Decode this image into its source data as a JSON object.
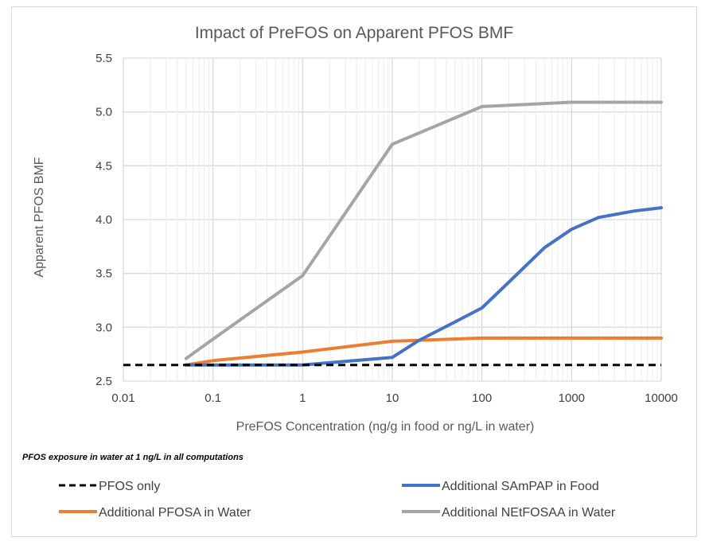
{
  "chart_data": {
    "type": "line",
    "title": "Impact of PreFOS on Apparent PFOS BMF",
    "xlabel": "PreFOS Concentration (ng/g in food or ng/L in water)",
    "ylabel": "Apparent PFOS BMF",
    "xscale": "log",
    "xlim": [
      0.01,
      10000
    ],
    "ylim": [
      2.5,
      5.5
    ],
    "x_ticks": [
      0.01,
      0.1,
      1,
      10,
      100,
      1000,
      10000
    ],
    "x_tick_labels": [
      "0.01",
      "0.1",
      "1",
      "10",
      "100",
      "1000",
      "10000"
    ],
    "y_ticks": [
      2.5,
      3.0,
      3.5,
      4.0,
      4.5,
      5.0,
      5.5
    ],
    "y_tick_labels": [
      "2.5",
      "3.0",
      "3.5",
      "4.0",
      "4.5",
      "5.0",
      "5.5"
    ],
    "grid": true,
    "legend_position": "bottom",
    "note": "PFOS exposure in water at 1 ng/L in all computations",
    "series": [
      {
        "name": "PFOS only",
        "color": "#000000",
        "dash": "dashed",
        "x": [
          0.01,
          10000
        ],
        "y": [
          2.65,
          2.65
        ]
      },
      {
        "name": "Additional SAmPAP in Food",
        "color": "#4472c4",
        "dash": "solid",
        "x": [
          0.05,
          0.1,
          1,
          10,
          20,
          50,
          100,
          200,
          500,
          1000,
          2000,
          5000,
          10000
        ],
        "y": [
          2.65,
          2.65,
          2.65,
          2.72,
          2.88,
          3.05,
          3.18,
          3.42,
          3.74,
          3.91,
          4.02,
          4.08,
          4.11
        ]
      },
      {
        "name": "Additional PFOSA in Water",
        "color": "#ed7d31",
        "dash": "solid",
        "x": [
          0.05,
          0.1,
          1,
          10,
          100,
          1000,
          10000
        ],
        "y": [
          2.65,
          2.69,
          2.77,
          2.87,
          2.9,
          2.9,
          2.9
        ]
      },
      {
        "name": "Additional NEtFOSAA in Water",
        "color": "#a5a5a5",
        "dash": "solid",
        "x": [
          0.05,
          0.1,
          1,
          10,
          100,
          1000,
          10000
        ],
        "y": [
          2.71,
          2.89,
          3.48,
          4.7,
          5.05,
          5.09,
          5.09
        ]
      }
    ]
  }
}
